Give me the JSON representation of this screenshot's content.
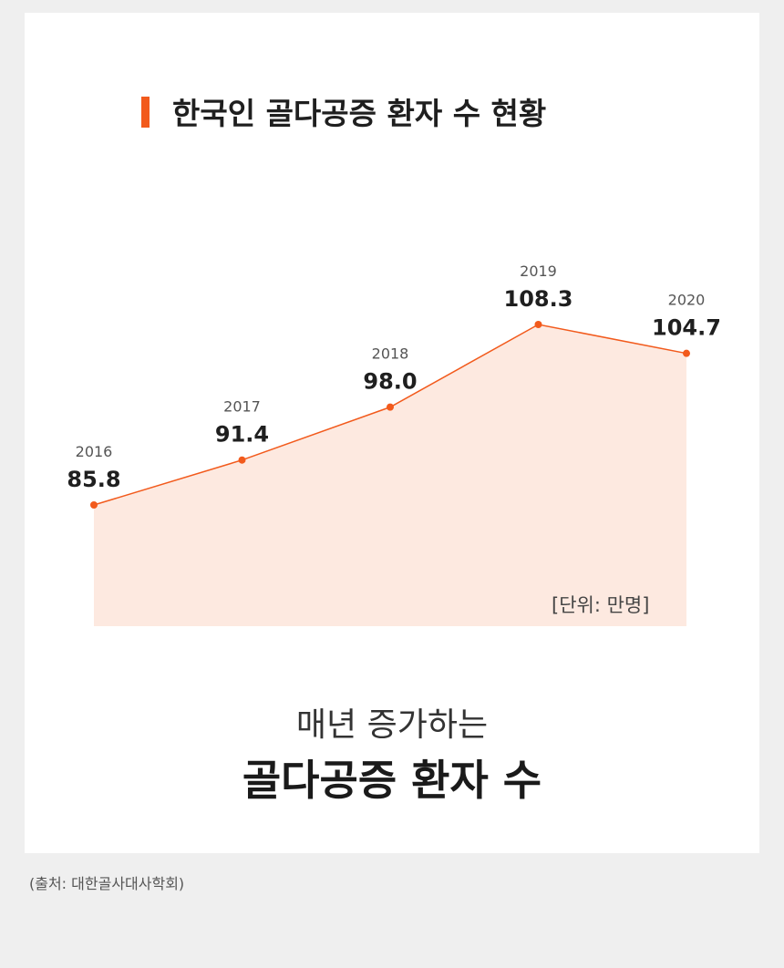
{
  "title": "한국인 골다공증 환자 수 현황",
  "unit_label": "[단위: 만명]",
  "headline": {
    "line1": "매년 증가하는",
    "line2": "골다공증 환자 수"
  },
  "source": "(출처: 대한골사대사학회)",
  "colors": {
    "accent": "#f25a1c",
    "area_fill": "#fde9e0"
  },
  "chart_data": {
    "type": "area",
    "x": [
      "2016",
      "2017",
      "2018",
      "2019",
      "2020"
    ],
    "values": [
      85.8,
      91.4,
      98.0,
      108.3,
      104.7
    ],
    "value_labels": [
      "85.8",
      "91.4",
      "98.0",
      "108.3",
      "104.7"
    ],
    "unit": "만명"
  }
}
